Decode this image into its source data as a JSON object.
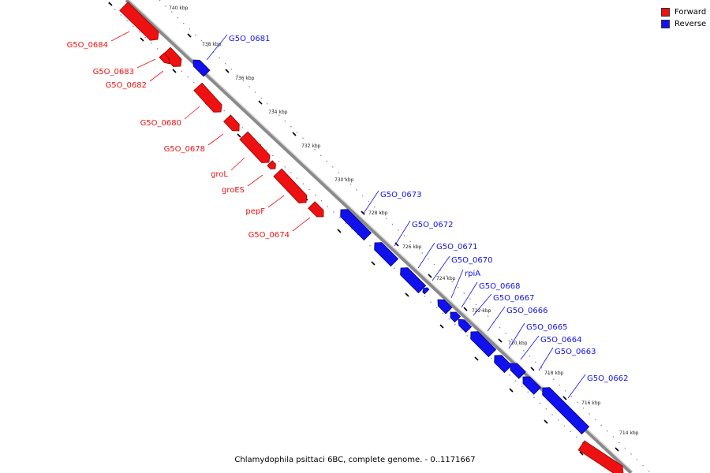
{
  "colors": {
    "forward": "#ee1111",
    "reverse": "#1111ee"
  },
  "legend": [
    {
      "key": "forward",
      "label": "Forward"
    },
    {
      "key": "reverse",
      "label": "Reverse"
    }
  ],
  "caption": "Chlamydophila psittaci 6BC, complete genome. - 0..1171667",
  "ticks": [
    {
      "label": "740 kbp"
    },
    {
      "label": "738 kbp"
    },
    {
      "label": "736 kbp"
    },
    {
      "label": "734 kbp"
    },
    {
      "label": "732 kbp"
    },
    {
      "label": "730 kbp"
    },
    {
      "label": "728 kbp"
    },
    {
      "label": "726 kbp"
    },
    {
      "label": "724 kbp"
    },
    {
      "label": "722 kbp"
    },
    {
      "label": "720 kbp"
    },
    {
      "label": "718 kbp"
    },
    {
      "label": "716 kbp"
    },
    {
      "label": "714 kbp"
    }
  ],
  "genes": [
    {
      "name": "G5O_0684",
      "strand": "forward"
    },
    {
      "name": "G5O_0683",
      "strand": "forward"
    },
    {
      "name": "G5O_0682",
      "strand": "forward"
    },
    {
      "name": "G5O_0681",
      "strand": "reverse"
    },
    {
      "name": "G5O_0680",
      "strand": "forward"
    },
    {
      "name": "G5O_0678",
      "strand": "forward"
    },
    {
      "name": "groL",
      "strand": "forward"
    },
    {
      "name": "groES",
      "strand": "forward"
    },
    {
      "name": "pepF",
      "strand": "forward"
    },
    {
      "name": "G5O_0674",
      "strand": "forward"
    },
    {
      "name": "G5O_0673",
      "strand": "reverse"
    },
    {
      "name": "G5O_0672",
      "strand": "reverse"
    },
    {
      "name": "G5O_0671",
      "strand": "reverse"
    },
    {
      "name": "G5O_0670",
      "strand": "reverse"
    },
    {
      "name": "rpiA",
      "strand": "reverse"
    },
    {
      "name": "G5O_0668",
      "strand": "reverse"
    },
    {
      "name": "G5O_0667",
      "strand": "reverse"
    },
    {
      "name": "G5O_0666",
      "strand": "reverse"
    },
    {
      "name": "G5O_0665",
      "strand": "reverse"
    },
    {
      "name": "G5O_0664",
      "strand": "reverse"
    },
    {
      "name": "G5O_0663",
      "strand": "reverse"
    },
    {
      "name": "G5O_0662",
      "strand": "reverse"
    },
    {
      "name": "",
      "strand": "forward"
    }
  ]
}
